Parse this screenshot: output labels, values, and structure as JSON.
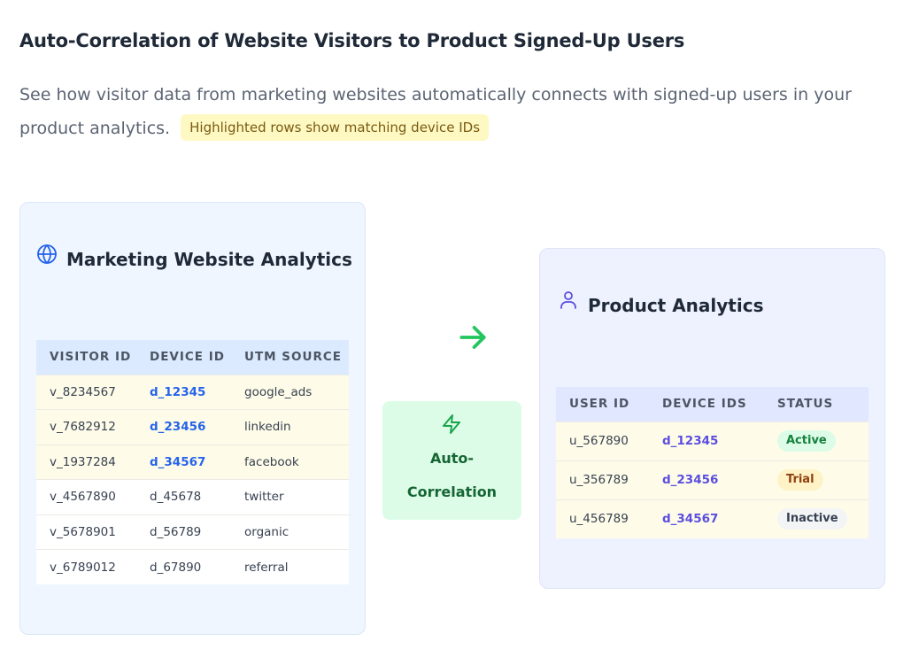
{
  "header": {
    "title": "Auto-Correlation of Website Visitors to Product Signed-Up Users",
    "description": "See how visitor data from marketing websites automatically connects with signed-up users in your product analytics.",
    "highlight_note": "Highlighted rows show matching device IDs"
  },
  "marketing": {
    "title": "Marketing Website Analytics",
    "icon": "globe-icon",
    "columns": [
      "VISITOR ID",
      "DEVICE ID",
      "UTM SOURCE"
    ],
    "rows": [
      {
        "visitor_id": "v_8234567",
        "device_id": "d_12345",
        "utm_source": "google_ads",
        "highlighted": true
      },
      {
        "visitor_id": "v_7682912",
        "device_id": "d_23456",
        "utm_source": "linkedin",
        "highlighted": true
      },
      {
        "visitor_id": "v_1937284",
        "device_id": "d_34567",
        "utm_source": "facebook",
        "highlighted": true
      },
      {
        "visitor_id": "v_4567890",
        "device_id": "d_45678",
        "utm_source": "twitter",
        "highlighted": false
      },
      {
        "visitor_id": "v_5678901",
        "device_id": "d_56789",
        "utm_source": "organic",
        "highlighted": false
      },
      {
        "visitor_id": "v_6789012",
        "device_id": "d_67890",
        "utm_source": "referral",
        "highlighted": false
      }
    ]
  },
  "connector": {
    "arrow_icon": "arrow-right-icon",
    "bolt_icon": "lightning-bolt-icon",
    "label_line1": "Auto-",
    "label_line2": "Correlation"
  },
  "product": {
    "title": "Product Analytics",
    "icon": "user-icon",
    "columns": [
      "USER ID",
      "DEVICE IDS",
      "STATUS"
    ],
    "rows": [
      {
        "user_id": "u_567890",
        "device_ids": "d_12345",
        "status": "Active"
      },
      {
        "user_id": "u_356789",
        "device_ids": "d_23456",
        "status": "Trial"
      },
      {
        "user_id": "u_456789",
        "device_ids": "d_34567",
        "status": "Inactive"
      }
    ]
  },
  "colors": {
    "highlight_row": "#fefce8",
    "accent_green": "#22c55e",
    "link_blue": "#2563eb",
    "link_indigo": "#5b4ee0"
  }
}
